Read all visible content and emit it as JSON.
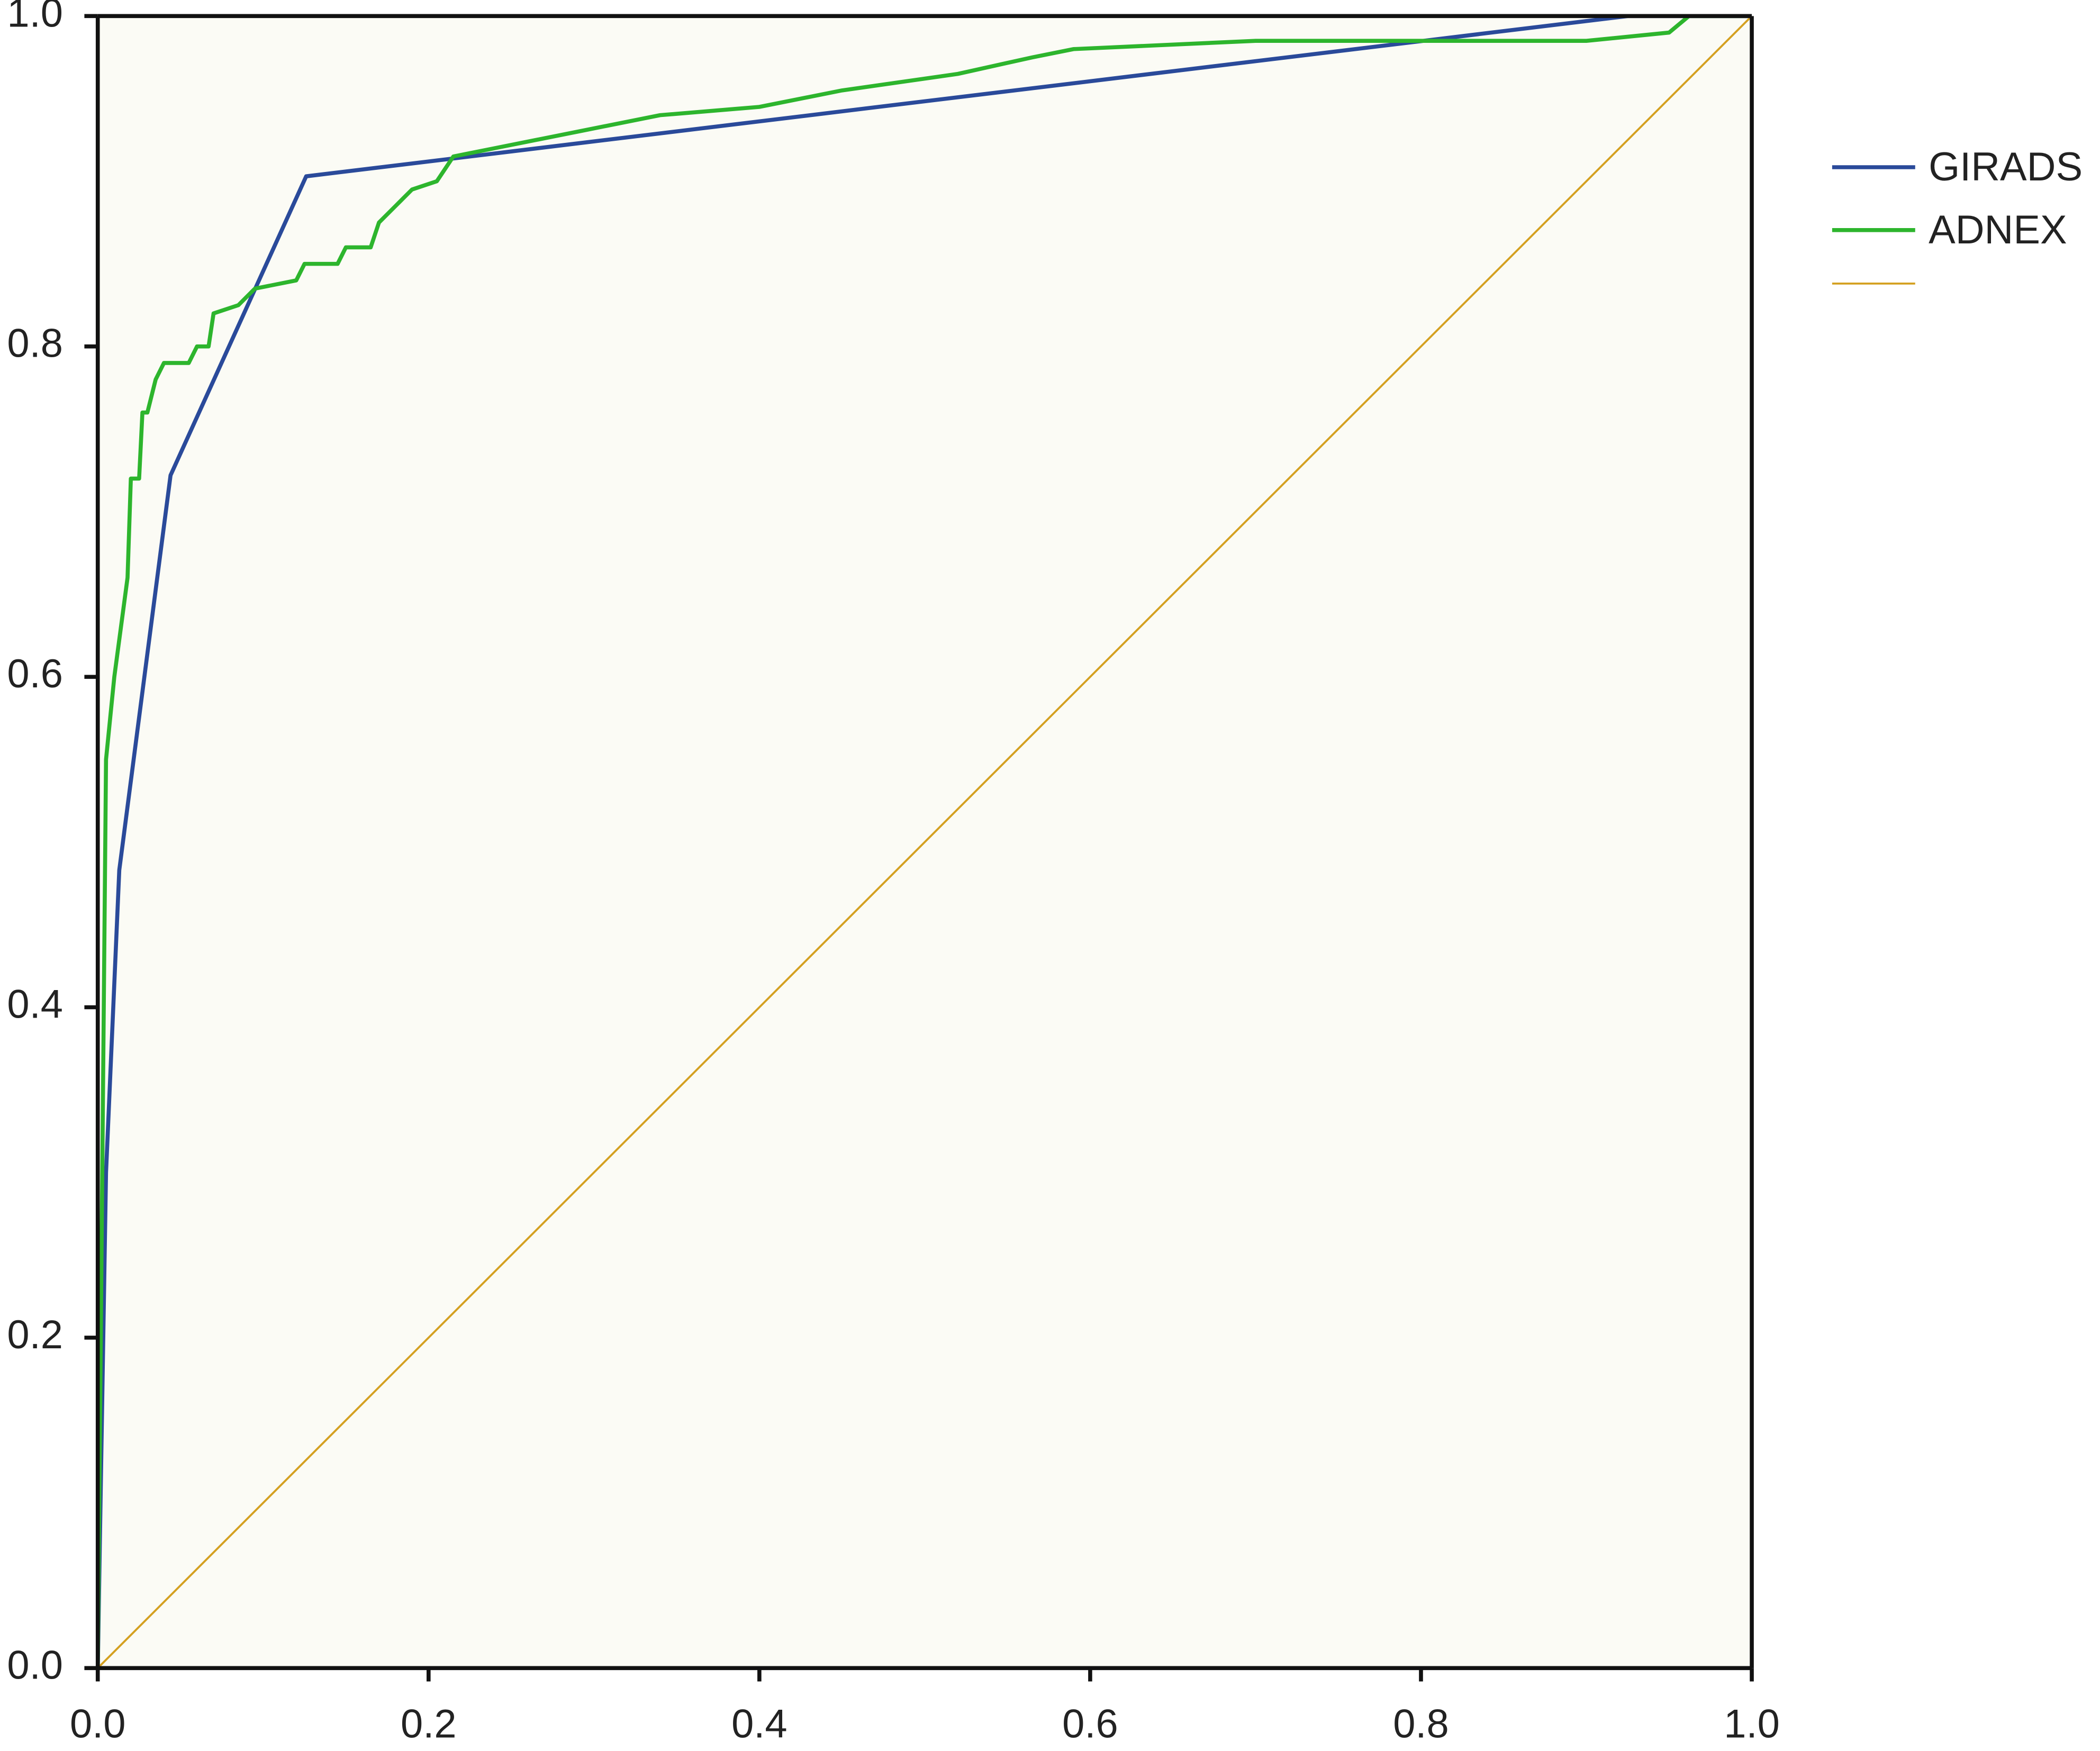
{
  "chart_data": {
    "type": "line",
    "xlim": [
      0,
      1
    ],
    "ylim": [
      0,
      1
    ],
    "xticks": [
      {
        "value": 0,
        "label": "0.0"
      },
      {
        "value": 0.2,
        "label": "0.2"
      },
      {
        "value": 0.4,
        "label": "0.4"
      },
      {
        "value": 0.6,
        "label": "0.6"
      },
      {
        "value": 0.8,
        "label": "0.8"
      },
      {
        "value": 1,
        "label": "1.0"
      }
    ],
    "yticks": [
      {
        "value": 0,
        "label": "0.0"
      },
      {
        "value": 0.2,
        "label": "0.2"
      },
      {
        "value": 0.4,
        "label": "0.4"
      },
      {
        "value": 0.6,
        "label": "0.6"
      },
      {
        "value": 0.8,
        "label": "0.8"
      },
      {
        "value": 1,
        "label": "1.0"
      }
    ],
    "grid": false,
    "legend": "right",
    "series": [
      {
        "name": "GIRADS",
        "color": "#2a4a9a",
        "x": [
          0,
          0.005,
          0.013,
          0.044,
          0.126,
          0.925,
          1
        ],
        "values": [
          0,
          0.3,
          0.483,
          0.722,
          0.903,
          1,
          1
        ]
      },
      {
        "name": "ADNEX",
        "color": "#2db52d",
        "x": [
          0,
          0.003,
          0.005,
          0.01,
          0.018,
          0.02,
          0.025,
          0.027,
          0.03,
          0.035,
          0.04,
          0.055,
          0.06,
          0.067,
          0.07,
          0.085,
          0.095,
          0.12,
          0.125,
          0.145,
          0.15,
          0.165,
          0.17,
          0.18,
          0.19,
          0.205,
          0.215,
          0.24,
          0.29,
          0.34,
          0.4,
          0.45,
          0.52,
          0.565,
          0.59,
          0.7,
          0.9,
          0.95,
          0.962,
          1
        ],
        "values": [
          0,
          0.33,
          0.55,
          0.6,
          0.66,
          0.72,
          0.72,
          0.76,
          0.76,
          0.78,
          0.79,
          0.79,
          0.8,
          0.8,
          0.82,
          0.825,
          0.835,
          0.84,
          0.85,
          0.85,
          0.86,
          0.86,
          0.875,
          0.885,
          0.895,
          0.9,
          0.915,
          0.92,
          0.93,
          0.94,
          0.945,
          0.955,
          0.965,
          0.975,
          0.98,
          0.985,
          0.985,
          0.99,
          1,
          1
        ]
      },
      {
        "color": "#d4a020",
        "x": [
          0,
          1
        ],
        "values": [
          0,
          1
        ]
      }
    ]
  }
}
